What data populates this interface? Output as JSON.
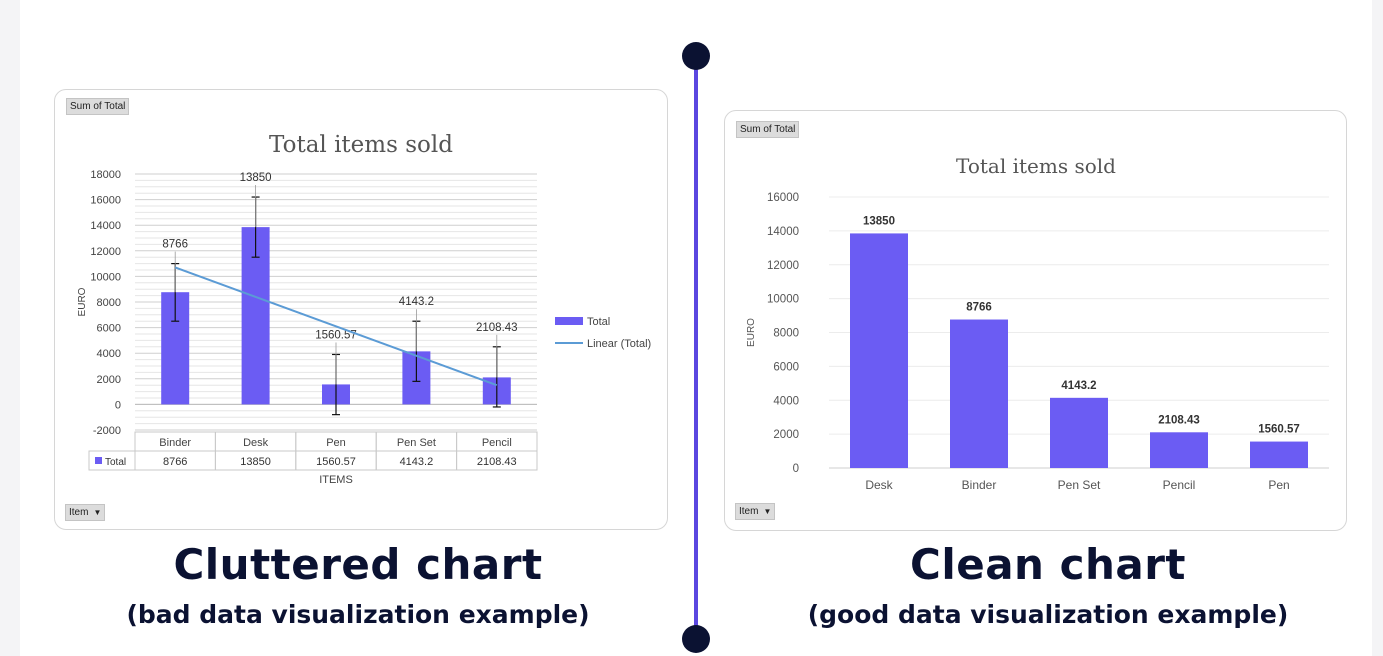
{
  "colors": {
    "bar": "#6b5cf3",
    "trend": "#5b9bd5",
    "divider": "#5b47e0",
    "dot": "#0b1232",
    "caption": "#0b1232"
  },
  "left": {
    "pivot_field_label": "Sum of Total",
    "filter_button_label": "Item",
    "caption_title": "Cluttered chart",
    "caption_subtitle": "(bad data visualization example)"
  },
  "right": {
    "pivot_field_label": "Sum of Total",
    "filter_button_label": "Item",
    "caption_title": "Clean chart",
    "caption_subtitle": "(good data visualization example)"
  },
  "chart_data": [
    {
      "type": "bar",
      "title": "Total items sold",
      "xlabel": "ITEMS",
      "ylabel": "EURO",
      "ylim": [
        -2000,
        18000
      ],
      "yticks": [
        -2000,
        0,
        2000,
        4000,
        6000,
        8000,
        10000,
        12000,
        14000,
        16000,
        18000
      ],
      "categories": [
        "Binder",
        "Desk",
        "Pen",
        "Pen Set",
        "Pencil"
      ],
      "series": [
        {
          "name": "Total",
          "values": [
            8766,
            13850,
            1560.57,
            4143.2,
            2108.43
          ]
        }
      ],
      "data_labels": [
        "8766",
        "13850",
        "1560.57",
        "4143.2",
        "2108.43"
      ],
      "error_bars": [
        [
          6500,
          11000
        ],
        [
          11500,
          16200
        ],
        [
          -800,
          3900
        ],
        [
          1800,
          6500
        ],
        [
          -200,
          4500
        ]
      ],
      "trendline": {
        "name": "Linear (Total)",
        "start": 10700,
        "end": 1500
      },
      "legend": [
        "Total",
        "Linear (Total)"
      ],
      "legend_position": "right",
      "data_table": {
        "row_label": "Total",
        "values": [
          "8766",
          "13850",
          "1560.57",
          "4143.2",
          "2108.43"
        ]
      },
      "grid": true
    },
    {
      "type": "bar",
      "title": "Total items sold",
      "xlabel": "",
      "ylabel": "EURO",
      "ylim": [
        0,
        16000
      ],
      "yticks": [
        0,
        2000,
        4000,
        6000,
        8000,
        10000,
        12000,
        14000,
        16000
      ],
      "categories": [
        "Desk",
        "Binder",
        "Pen Set",
        "Pencil",
        "Pen"
      ],
      "series": [
        {
          "name": "Total",
          "values": [
            13850,
            8766,
            4143.2,
            2108.43,
            1560.57
          ]
        }
      ],
      "data_labels": [
        "13850",
        "8766",
        "4143.2",
        "2108.43",
        "1560.57"
      ],
      "grid": true
    }
  ]
}
